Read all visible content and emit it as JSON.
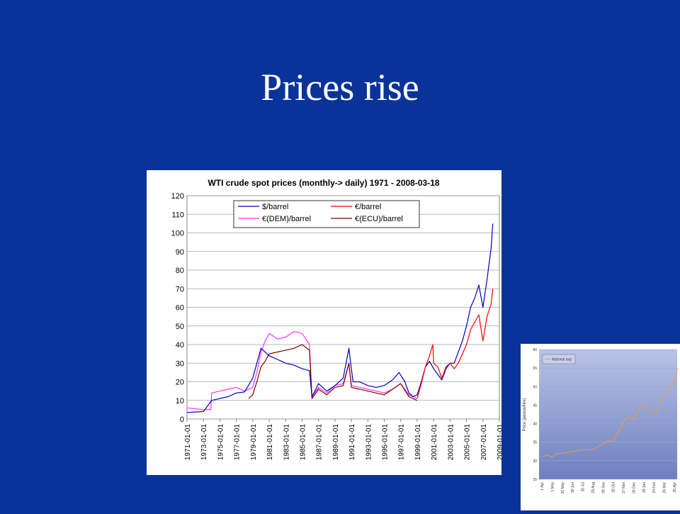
{
  "slide": {
    "title": "Prices rise"
  },
  "colors": {
    "background": "#0a3399",
    "usd": "#0000cc",
    "eur": "#ff0000",
    "dem": "#ff33ff",
    "ecu": "#800000",
    "national": "#e8a040"
  },
  "chart_data": [
    {
      "type": "line",
      "title": "WTI crude spot prices (monthly-> daily) 1971 - 2008-03-18",
      "xlabel": "",
      "ylabel": "",
      "xlim": [
        1971,
        2009
      ],
      "ylim": [
        0,
        120
      ],
      "yticks": [
        0,
        10,
        20,
        30,
        40,
        50,
        60,
        70,
        80,
        90,
        100,
        110,
        120
      ],
      "xticks": [
        "1971-01-01",
        "1973-01-01",
        "1975-01-01",
        "1977-01-01",
        "1979-01-01",
        "1981-01-01",
        "1983-01-01",
        "1985-01-01",
        "1987-01-01",
        "1989-01-01",
        "1991-01-01",
        "1993-01-01",
        "1995-01-01",
        "1997-01-01",
        "1999-01-01",
        "2001-01-01",
        "2003-01-01",
        "2005-01-01",
        "2007-01-01",
        "2009-01-01"
      ],
      "grid": true,
      "legend_position": "top-center",
      "series": [
        {
          "name": "$/barrel",
          "color": "#0000cc",
          "x": [
            1971,
            1973,
            1974,
            1975,
            1976,
            1977,
            1978,
            1979,
            1979.5,
            1980,
            1980.5,
            1981,
            1982,
            1983,
            1984,
            1985,
            1985.9,
            1986.2,
            1987,
            1988,
            1989,
            1990,
            1990.7,
            1990.85,
            1991.2,
            1992,
            1993,
            1994,
            1995,
            1996,
            1996.8,
            1997.5,
            1998,
            1998.5,
            1999,
            1999.5,
            2000,
            2000.5,
            2001,
            2001.5,
            2002,
            2002.5,
            2003,
            2003.5,
            2004,
            2004.5,
            2005,
            2005.5,
            2006,
            2006.5,
            2007,
            2007.5,
            2008,
            2008.2
          ],
          "y": [
            3.5,
            4,
            10,
            11,
            12,
            14,
            14.5,
            22,
            30,
            38,
            36,
            34,
            32,
            30,
            29,
            27,
            26,
            12,
            19,
            15,
            18,
            22,
            38,
            32,
            20,
            20,
            18,
            17,
            18,
            21,
            25,
            20,
            14,
            12,
            13,
            20,
            28,
            31,
            27,
            24,
            21,
            27,
            30,
            30,
            36,
            42,
            50,
            60,
            65,
            72,
            60,
            75,
            92,
            105
          ]
        },
        {
          "name": "€/barrel",
          "color": "#ff0000",
          "x": [
            1999,
            1999.5,
            2000,
            2000.5,
            2000.9,
            2001,
            2001.5,
            2002,
            2002.5,
            2003,
            2003.5,
            2004,
            2004.5,
            2005,
            2005.5,
            2006,
            2006.5,
            2007,
            2007.5,
            2008,
            2008.2
          ],
          "y": [
            11,
            19,
            28,
            34,
            40,
            30,
            28,
            22,
            28,
            30,
            27,
            30,
            35,
            40,
            48,
            52,
            56,
            42,
            55,
            62,
            70
          ]
        },
        {
          "name": "€(DEM)/barrel",
          "color": "#ff33ff",
          "x": [
            1971,
            1973,
            1973.9,
            1974,
            1975,
            1976,
            1977,
            1978,
            1979,
            1979.5,
            1980,
            1980.5,
            1981,
            1982,
            1983,
            1984,
            1985,
            1985.9,
            1986.2,
            1987,
            1988,
            1989,
            1990,
            1990.7,
            1991,
            1992,
            1993,
            1994,
            1995,
            1996,
            1997,
            1998,
            1999
          ],
          "y": [
            6,
            5,
            5,
            14,
            15,
            16,
            17,
            15,
            17,
            25,
            36,
            42,
            46,
            43,
            44,
            47,
            46,
            40,
            12,
            17,
            14,
            18,
            19,
            30,
            18,
            17,
            16,
            15,
            14,
            16,
            19,
            13,
            11
          ]
        },
        {
          "name": "€(ECU)/barrel",
          "color": "#800000",
          "x": [
            1978.5,
            1979,
            1979.5,
            1980,
            1980.5,
            1981,
            1982,
            1983,
            1984,
            1985,
            1985.9,
            1986.2,
            1987,
            1988,
            1989,
            1990,
            1990.7,
            1991,
            1992,
            1993,
            1994,
            1995,
            1996,
            1997,
            1998,
            1999
          ],
          "y": [
            11,
            13,
            20,
            28,
            31,
            35,
            36,
            37,
            38,
            40,
            37,
            11,
            16,
            13,
            17,
            18,
            30,
            17,
            16,
            15,
            14,
            13,
            16,
            19,
            12,
            10
          ]
        }
      ]
    },
    {
      "type": "line",
      "title": "",
      "ylabel": "Price (pence/litre)",
      "xlabel": "",
      "ylim": [
        25,
        60
      ],
      "yticks": [
        25,
        30,
        35,
        40,
        45,
        50,
        55,
        60
      ],
      "xticks": [
        "1 Apr",
        "1 May",
        "31 May",
        "30 Jun",
        "30 Jul",
        "29 Aug",
        "28 Sep",
        "28 Oct",
        "27 Nov",
        "26 Dec",
        "25 Jan",
        "24 Feb",
        "26 Mar",
        "25 Apr"
      ],
      "legend_position": "top-left",
      "series": [
        {
          "name": "National avg",
          "color": "#e8a040",
          "x": [
            0,
            0.5,
            1,
            1.5,
            2,
            3,
            4,
            5,
            6,
            6.5,
            7,
            7.3,
            7.6,
            8,
            8.5,
            9,
            9.3,
            9.6,
            10,
            10.5,
            11,
            11.3,
            11.6,
            12,
            12.5,
            13,
            13.3
          ],
          "y": [
            31,
            31.5,
            31,
            32,
            32,
            32.5,
            33,
            33,
            34.5,
            35.5,
            35,
            37,
            38,
            40.5,
            42,
            41,
            43,
            44,
            45,
            43.5,
            42.5,
            43,
            46,
            48,
            50,
            51,
            55
          ]
        }
      ]
    }
  ]
}
